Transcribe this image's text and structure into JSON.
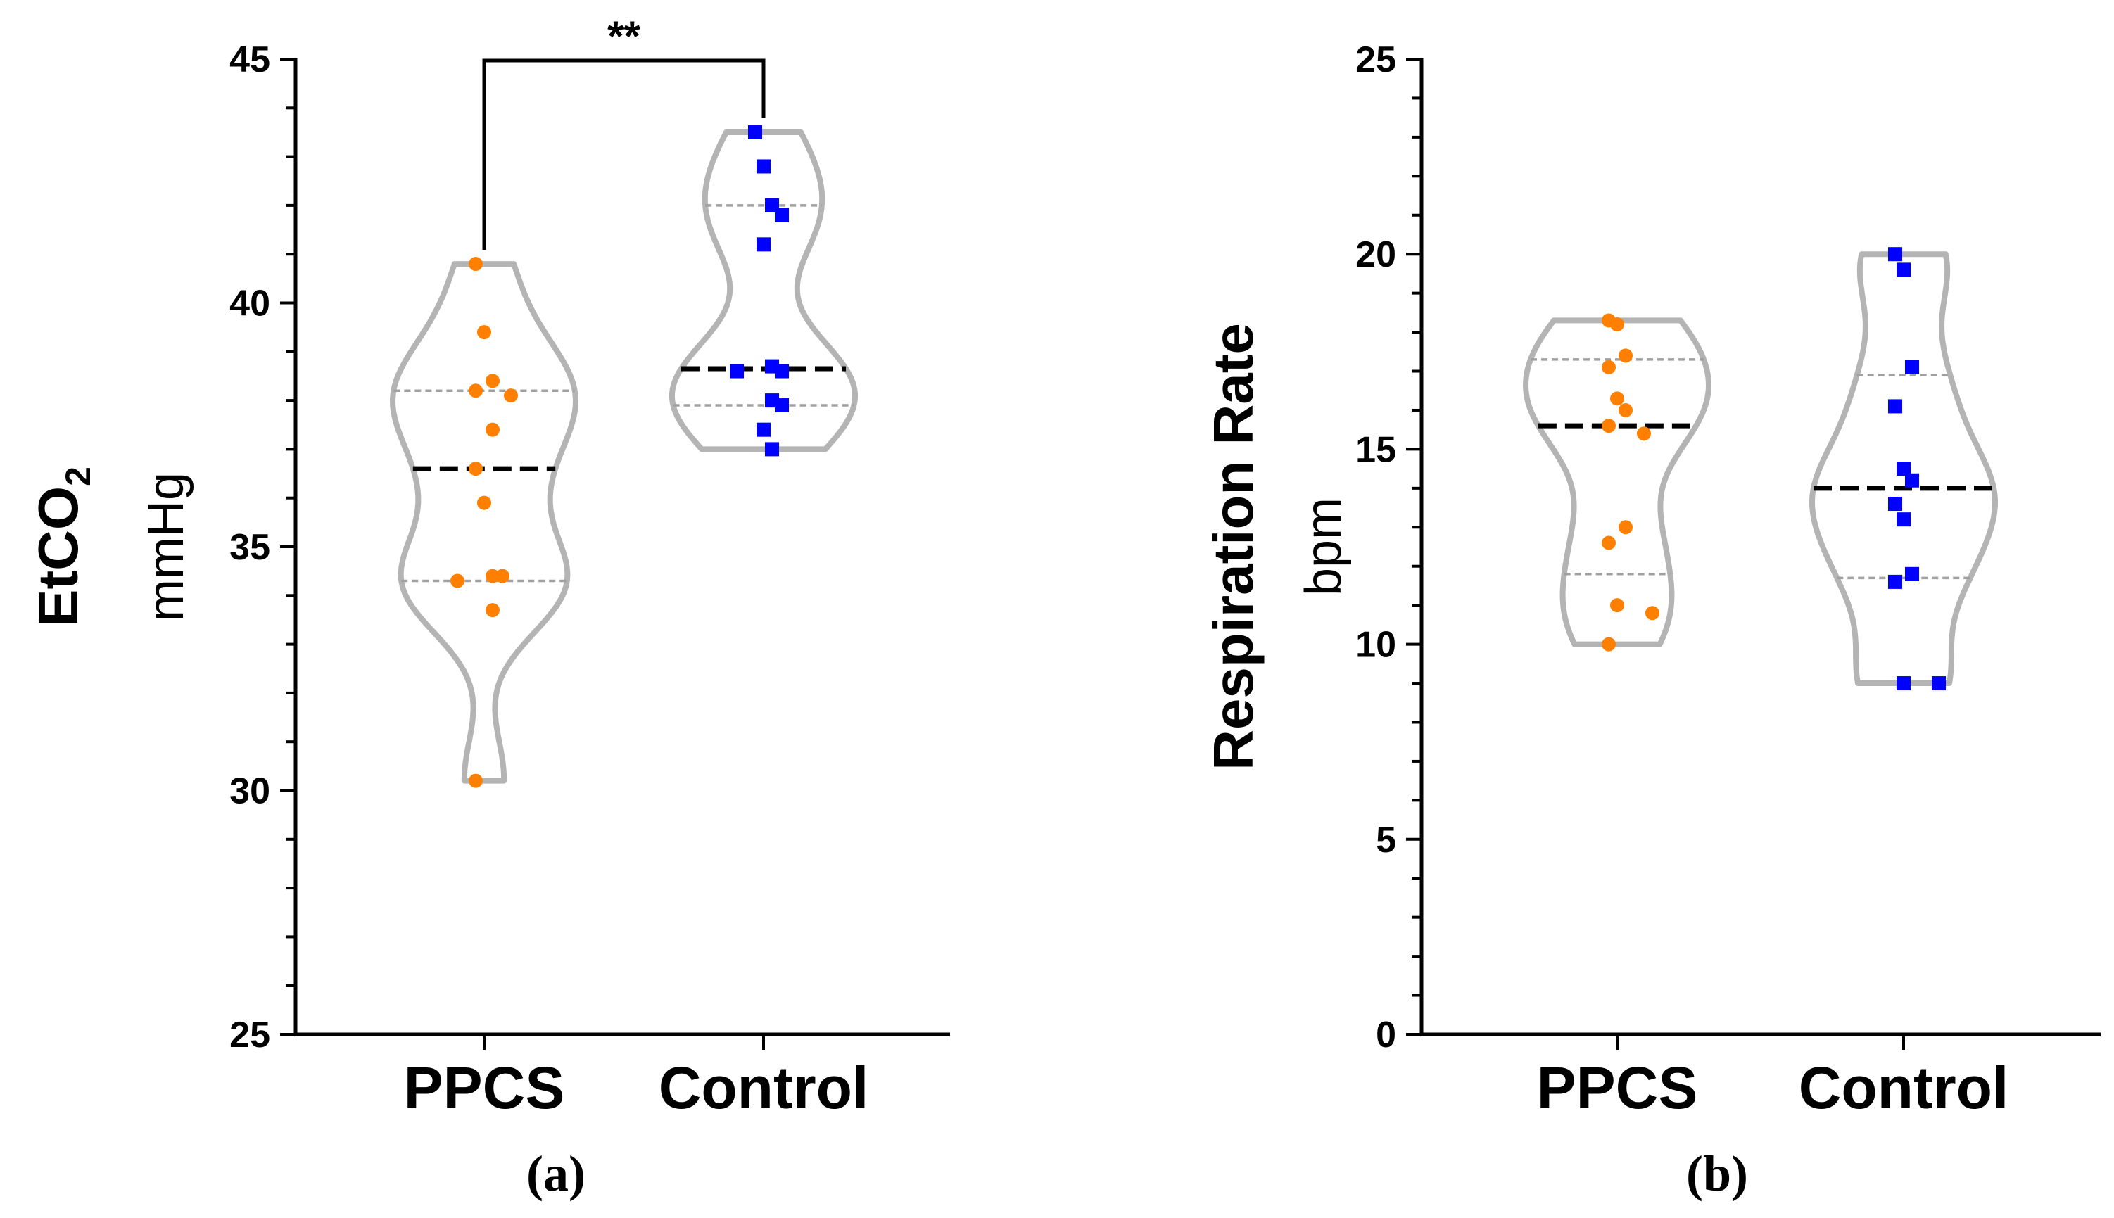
{
  "chart_data": [
    {
      "type": "violin",
      "panel_label": "(a)",
      "ylabel": "EtCO",
      "ylabel_subscript": "2",
      "ylabel_unit": "mmHg",
      "ylim": [
        25,
        45
      ],
      "yticks": [
        25,
        30,
        35,
        40,
        45
      ],
      "categories": [
        "PPCS",
        "Control"
      ],
      "significance": {
        "between": [
          "PPCS",
          "Control"
        ],
        "label": "**"
      },
      "series": [
        {
          "name": "PPCS",
          "marker": "circle",
          "color": "#ff8000",
          "points": [
            40.8,
            39.4,
            38.4,
            38.2,
            38.1,
            37.4,
            36.6,
            35.9,
            34.4,
            34.4,
            34.3,
            33.7,
            30.2
          ],
          "median": 36.6,
          "quartiles": [
            34.3,
            38.2
          ],
          "range": [
            30.2,
            40.8
          ]
        },
        {
          "name": "Control",
          "marker": "square",
          "color": "#0000ff",
          "points": [
            43.5,
            42.8,
            42.0,
            41.8,
            41.2,
            38.7,
            38.6,
            38.6,
            38.0,
            37.9,
            37.4,
            37.0
          ],
          "median": 38.65,
          "quartiles": [
            37.9,
            42.0
          ],
          "range": [
            37.0,
            43.5
          ]
        }
      ]
    },
    {
      "type": "violin",
      "panel_label": "(b)",
      "ylabel": "Respiration Rate",
      "ylabel_unit": "bpm",
      "ylim": [
        0,
        25
      ],
      "yticks": [
        0,
        5,
        10,
        15,
        20,
        25
      ],
      "categories": [
        "PPCS",
        "Control"
      ],
      "series": [
        {
          "name": "PPCS",
          "marker": "circle",
          "color": "#ff8000",
          "points": [
            18.3,
            18.2,
            17.4,
            17.1,
            16.3,
            16.0,
            15.6,
            15.4,
            13.0,
            12.6,
            11.0,
            10.8,
            10.0
          ],
          "median": 15.6,
          "quartiles": [
            11.8,
            17.3
          ],
          "range": [
            10.0,
            18.3
          ]
        },
        {
          "name": "Control",
          "marker": "square",
          "color": "#0000ff",
          "points": [
            20.0,
            19.6,
            17.1,
            16.1,
            14.5,
            14.2,
            13.6,
            13.2,
            11.8,
            11.6,
            9.0,
            9.0
          ],
          "median": 14.0,
          "quartiles": [
            11.7,
            16.9
          ],
          "range": [
            9.0,
            20.0
          ]
        }
      ]
    }
  ]
}
